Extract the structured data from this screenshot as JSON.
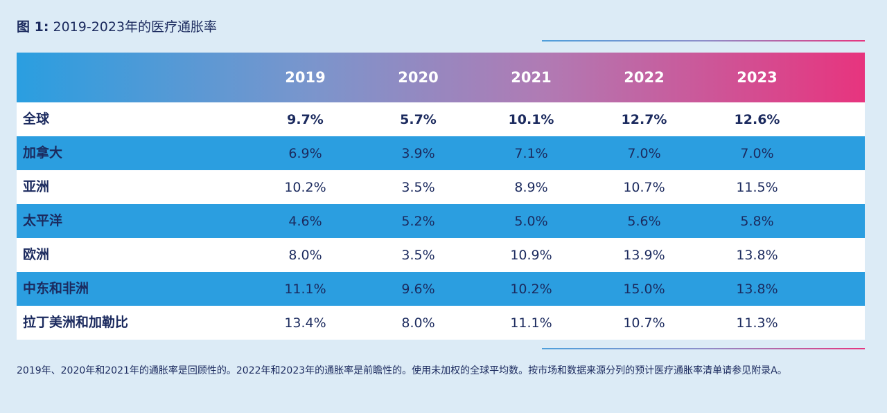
{
  "caption": {
    "figure": "图 1:",
    "title": "2019-2023年的医疗通胀率"
  },
  "chart_data": {
    "type": "table",
    "title": "2019-2023年的医疗通胀率",
    "columns": [
      "2019",
      "2020",
      "2021",
      "2022",
      "2023"
    ],
    "rows": [
      {
        "label": "全球",
        "values": [
          "9.7%",
          "5.7%",
          "10.1%",
          "12.7%",
          "12.6%"
        ],
        "bold": true,
        "shade": "white"
      },
      {
        "label": "加拿大",
        "values": [
          "6.9%",
          "3.9%",
          "7.1%",
          "7.0%",
          "7.0%"
        ],
        "bold": false,
        "shade": "blue"
      },
      {
        "label": "亚洲",
        "values": [
          "10.2%",
          "3.5%",
          "8.9%",
          "10.7%",
          "11.5%"
        ],
        "bold": false,
        "shade": "white"
      },
      {
        "label": "太平洋",
        "values": [
          "4.6%",
          "5.2%",
          "5.0%",
          "5.6%",
          "5.8%"
        ],
        "bold": false,
        "shade": "blue"
      },
      {
        "label": "欧洲",
        "values": [
          "8.0%",
          "3.5%",
          "10.9%",
          "13.9%",
          "13.8%"
        ],
        "bold": false,
        "shade": "white"
      },
      {
        "label": "中东和非洲",
        "values": [
          "11.1%",
          "9.6%",
          "10.2%",
          "15.0%",
          "13.8%"
        ],
        "bold": false,
        "shade": "blue"
      },
      {
        "label": "拉丁美洲和加勒比",
        "values": [
          "13.4%",
          "8.0%",
          "11.1%",
          "10.7%",
          "11.3%"
        ],
        "bold": false,
        "shade": "white"
      }
    ]
  },
  "colors": {
    "background": "#dcebf6",
    "header_gradient_start": "#2a9ee0",
    "header_gradient_end": "#e7347e",
    "row_blue": "#2b9ee0",
    "text": "#1b2a5e"
  },
  "note": "2019年、2020年和2021年的通胀率是回顾性的。2022年和2023年的通胀率是前瞻性的。使用未加权的全球平均数。按市场和数据来源分列的预计医疗通胀率清单请参见附录A。"
}
